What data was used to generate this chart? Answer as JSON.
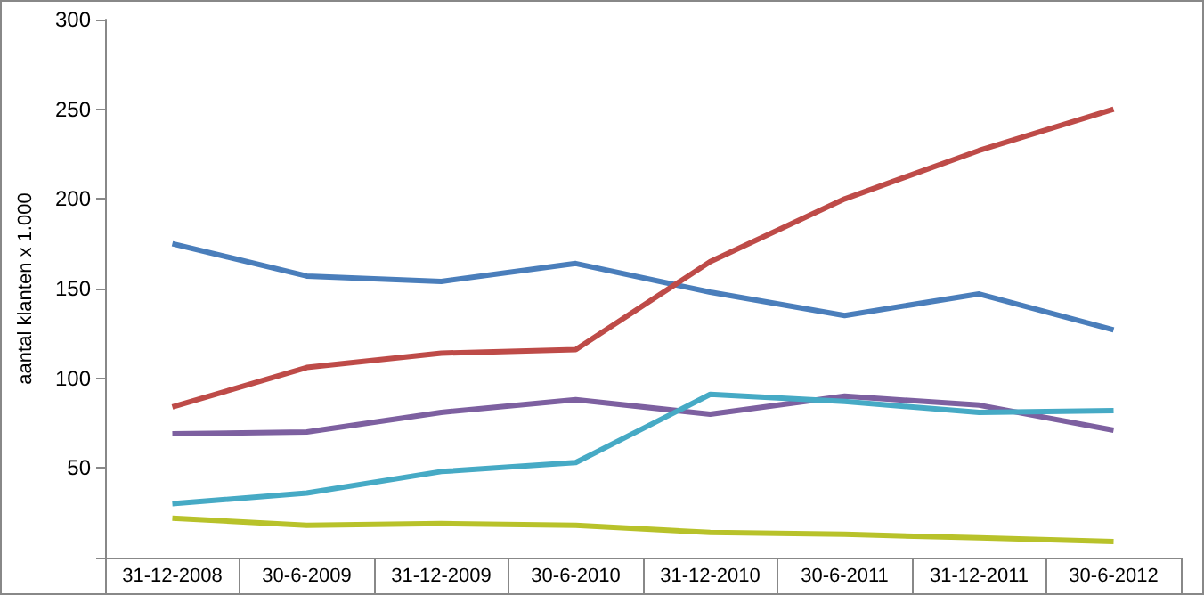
{
  "chart_data": {
    "type": "line",
    "ylabel": "aantal klanten x 1.000",
    "categories": [
      "31-12-2008",
      "30-6-2009",
      "31-12-2009",
      "30-6-2010",
      "31-12-2010",
      "30-6-2011",
      "31-12-2011",
      "30-6-2012"
    ],
    "series": [
      {
        "color": "#4a7ebb",
        "values": [
          175,
          157,
          154,
          164,
          148,
          135,
          147,
          127
        ]
      },
      {
        "color": "#be4b48",
        "values": [
          84,
          106,
          114,
          116,
          165,
          200,
          227,
          250
        ]
      },
      {
        "color": "#7d60a0",
        "values": [
          69,
          70,
          81,
          88,
          80,
          90,
          85,
          71
        ]
      },
      {
        "color": "#46aac5",
        "values": [
          30,
          36,
          48,
          53,
          91,
          87,
          81,
          82
        ]
      },
      {
        "color": "#b8c22a",
        "values": [
          22,
          18,
          19,
          18,
          14,
          13,
          11,
          9
        ]
      }
    ],
    "ylim": [
      0,
      300
    ],
    "yticks": [
      {
        "value": 0,
        "label": null
      },
      50,
      100,
      150,
      200,
      250,
      300
    ],
    "grid": false,
    "legend": false,
    "marker": "none",
    "line_style": "solid"
  }
}
